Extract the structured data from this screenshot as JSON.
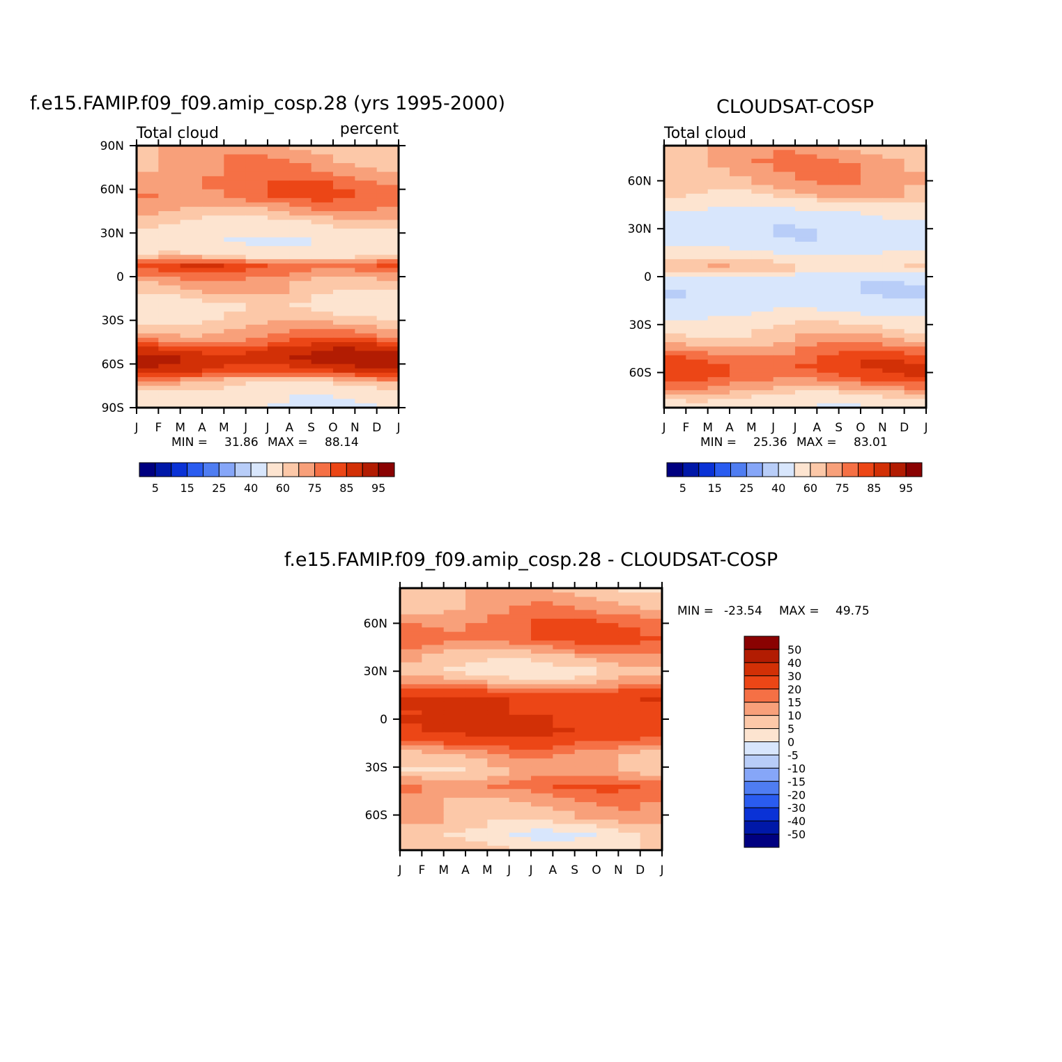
{
  "chart_data": [
    {
      "type": "heatmap",
      "id": "model",
      "title": "f.e15.FAMIP.f09_f09.amip_cosp.28 (yrs 1995-2000)",
      "left_label": "Total cloud",
      "right_label": "percent",
      "x_tick_labels": [
        "J",
        "F",
        "M",
        "A",
        "M",
        "J",
        "J",
        "A",
        "S",
        "O",
        "N",
        "D",
        "J"
      ],
      "y_tick_labels": [
        "90N",
        "60N",
        "30N",
        "0",
        "30S",
        "60S",
        "90S"
      ],
      "y_tick_values": [
        90,
        60,
        30,
        0,
        -30,
        -60,
        -90
      ],
      "ylim": [
        -90,
        90
      ],
      "stats": {
        "min_label": "MIN =",
        "min": "31.86",
        "max_label": "MAX =",
        "max": "88.14"
      },
      "colorbar_labels": [
        "5",
        "15",
        "25",
        "40",
        "60",
        "75",
        "85",
        "95"
      ],
      "lat_profile": [
        {
          "lat": 90,
          "value": 65
        },
        {
          "lat": 75,
          "value": 68
        },
        {
          "lat": 65,
          "value": 72
        },
        {
          "lat": 55,
          "value": 73
        },
        {
          "lat": 45,
          "value": 66
        },
        {
          "lat": 35,
          "value": 58
        },
        {
          "lat": 25,
          "value": 52
        },
        {
          "lat": 15,
          "value": 57
        },
        {
          "lat": 8,
          "value": 77
        },
        {
          "lat": 3,
          "value": 72
        },
        {
          "lat": -2,
          "value": 67
        },
        {
          "lat": -10,
          "value": 63
        },
        {
          "lat": -20,
          "value": 56
        },
        {
          "lat": -32,
          "value": 63
        },
        {
          "lat": -42,
          "value": 70
        },
        {
          "lat": -50,
          "value": 82
        },
        {
          "lat": -57,
          "value": 86
        },
        {
          "lat": -65,
          "value": 80
        },
        {
          "lat": -72,
          "value": 63
        },
        {
          "lat": -80,
          "value": 55
        },
        {
          "lat": -90,
          "value": 50
        }
      ]
    },
    {
      "type": "heatmap",
      "id": "obs",
      "title": "CLOUDSAT-COSP",
      "left_label": "Total cloud",
      "right_label": "",
      "x_tick_labels": [
        "J",
        "F",
        "M",
        "A",
        "M",
        "J",
        "J",
        "A",
        "S",
        "O",
        "N",
        "D",
        "J"
      ],
      "y_tick_labels": [
        "60N",
        "30N",
        "0",
        "30S",
        "60S"
      ],
      "y_tick_values": [
        60,
        30,
        0,
        -30,
        -60
      ],
      "ylim": [
        -82,
        82
      ],
      "stats": {
        "min_label": "MIN =",
        "min": "25.36",
        "max_label": "MAX =",
        "max": "83.01"
      },
      "colorbar_labels": [
        "5",
        "15",
        "25",
        "40",
        "60",
        "75",
        "85",
        "95"
      ],
      "lat_profile": [
        {
          "lat": 82,
          "value": 65
        },
        {
          "lat": 72,
          "value": 68
        },
        {
          "lat": 60,
          "value": 67
        },
        {
          "lat": 50,
          "value": 62
        },
        {
          "lat": 40,
          "value": 48
        },
        {
          "lat": 30,
          "value": 43
        },
        {
          "lat": 20,
          "value": 44
        },
        {
          "lat": 10,
          "value": 58
        },
        {
          "lat": 5,
          "value": 63
        },
        {
          "lat": 0,
          "value": 45
        },
        {
          "lat": -10,
          "value": 42
        },
        {
          "lat": -20,
          "value": 46
        },
        {
          "lat": -30,
          "value": 58
        },
        {
          "lat": -40,
          "value": 65
        },
        {
          "lat": -48,
          "value": 72
        },
        {
          "lat": -55,
          "value": 78
        },
        {
          "lat": -62,
          "value": 76
        },
        {
          "lat": -70,
          "value": 67
        },
        {
          "lat": -76,
          "value": 58
        },
        {
          "lat": -82,
          "value": 52
        }
      ]
    },
    {
      "type": "heatmap",
      "id": "diff",
      "title": "f.e15.FAMIP.f09_f09.amip_cosp.28 - CLOUDSAT-COSP",
      "x_tick_labels": [
        "J",
        "F",
        "M",
        "A",
        "M",
        "J",
        "J",
        "A",
        "S",
        "O",
        "N",
        "D",
        "J"
      ],
      "y_tick_labels": [
        "60N",
        "30N",
        "0",
        "30S",
        "60S"
      ],
      "y_tick_values": [
        60,
        30,
        0,
        -30,
        -60
      ],
      "ylim": [
        -82,
        82
      ],
      "stats": {
        "min_label": "MIN =",
        "min": "-23.54",
        "max_label": "MAX =",
        "max": "49.75"
      },
      "colorbar_labels": [
        "50",
        "40",
        "30",
        "20",
        "15",
        "10",
        "5",
        "0",
        "-5",
        "-10",
        "-15",
        "-20",
        "-30",
        "-40",
        "-50"
      ],
      "lat_profile": [
        {
          "lat": 82,
          "value": 8
        },
        {
          "lat": 70,
          "value": 12
        },
        {
          "lat": 60,
          "value": 18
        },
        {
          "lat": 50,
          "value": 20
        },
        {
          "lat": 40,
          "value": 10
        },
        {
          "lat": 30,
          "value": 4
        },
        {
          "lat": 22,
          "value": 12
        },
        {
          "lat": 12,
          "value": 30
        },
        {
          "lat": 5,
          "value": 28
        },
        {
          "lat": 0,
          "value": 32
        },
        {
          "lat": -8,
          "value": 30
        },
        {
          "lat": -15,
          "value": 20
        },
        {
          "lat": -22,
          "value": 12
        },
        {
          "lat": -32,
          "value": 8
        },
        {
          "lat": -42,
          "value": 18
        },
        {
          "lat": -52,
          "value": 12
        },
        {
          "lat": -62,
          "value": 10
        },
        {
          "lat": -72,
          "value": 2
        },
        {
          "lat": -82,
          "value": 6
        }
      ]
    }
  ],
  "colors": {
    "abs_palette": [
      "#000080",
      "#0018a8",
      "#0a32d6",
      "#2a5cf0",
      "#4f7df2",
      "#86a6f8",
      "#b8cdf8",
      "#d8e6fc",
      "#fde4d0",
      "#fcc8a8",
      "#f8a07a",
      "#f57045",
      "#ec4616",
      "#d23006",
      "#b21c02",
      "#8a0202"
    ],
    "abs_levels": [
      5,
      10,
      15,
      20,
      25,
      30,
      40,
      50,
      60,
      65,
      70,
      75,
      80,
      85,
      90,
      95
    ],
    "diff_palette": [
      "#000080",
      "#0018a8",
      "#0a32d6",
      "#2a5cf0",
      "#4f7df2",
      "#86a6f8",
      "#b8cdf8",
      "#d8e6fc",
      "#fde4d0",
      "#fcc8a8",
      "#f8a07a",
      "#f57045",
      "#ec4616",
      "#d23006",
      "#b21c02",
      "#8a0202"
    ],
    "diff_levels": [
      -50,
      -40,
      -30,
      -20,
      -15,
      -10,
      -5,
      0,
      5,
      10,
      15,
      20,
      30,
      40,
      50
    ]
  }
}
